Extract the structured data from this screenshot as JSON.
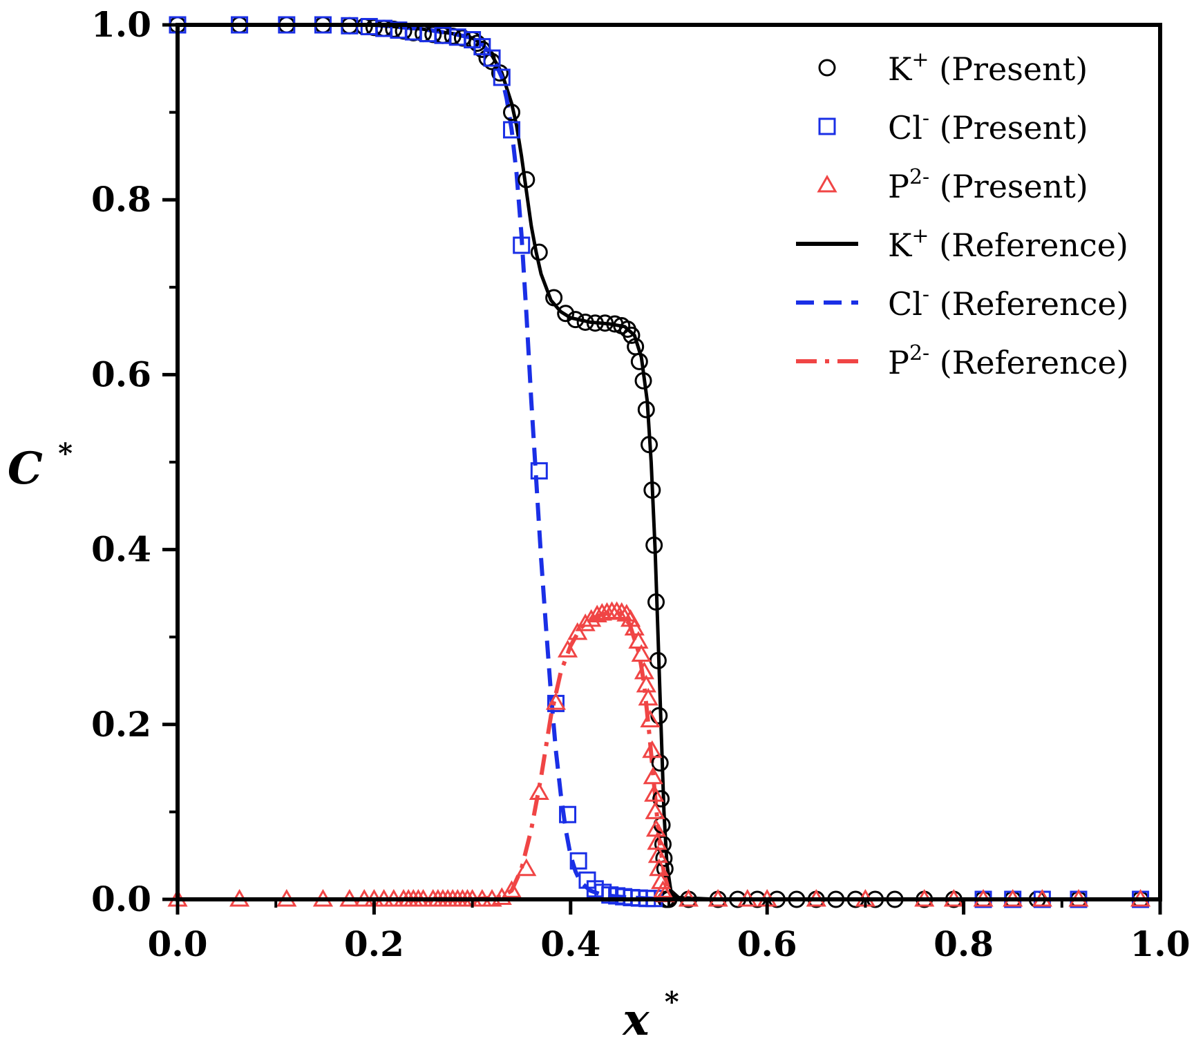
{
  "chart_data": {
    "type": "line",
    "title": "",
    "xlabel": "x",
    "xlabel_superscript": "*",
    "ylabel": "C",
    "ylabel_superscript": "*",
    "xlim": [
      0.0,
      1.0
    ],
    "ylim": [
      0.0,
      1.0
    ],
    "xticks": [
      "0.0",
      "0.2",
      "0.4",
      "0.6",
      "0.8",
      "1.0"
    ],
    "yticks": [
      "0.0",
      "0.2",
      "0.4",
      "0.6",
      "0.8",
      "1.0"
    ],
    "grid": false,
    "legend_position": "top-right",
    "colors": {
      "black": "#000000",
      "blue": "#1a2fe6",
      "red": "#f04545"
    },
    "legend": [
      {
        "base": "K",
        "sup": "+",
        "suffix": " (Present)",
        "style": "circle",
        "color": "#000000"
      },
      {
        "base": "Cl",
        "sup": "-",
        "suffix": " (Present)",
        "style": "square",
        "color": "#1a2fe6"
      },
      {
        "base": "P",
        "sup": "2-",
        "suffix": " (Present)",
        "style": "triangle",
        "color": "#f04545"
      },
      {
        "base": "K",
        "sup": "+",
        "suffix": " (Reference)",
        "style": "solid",
        "color": "#000000"
      },
      {
        "base": "Cl",
        "sup": "-",
        "suffix": " (Reference)",
        "style": "dashed",
        "color": "#1a2fe6"
      },
      {
        "base": "P",
        "sup": "2-",
        "suffix": " (Reference)",
        "style": "dashdot",
        "color": "#f04545"
      }
    ],
    "series": [
      {
        "name": "K+ (Reference)",
        "style": "solid",
        "color": "#000000",
        "x": [
          0.0,
          0.2,
          0.25,
          0.28,
          0.3,
          0.31,
          0.32,
          0.33,
          0.34,
          0.345,
          0.35,
          0.355,
          0.36,
          0.365,
          0.37,
          0.38,
          0.39,
          0.4,
          0.42,
          0.44,
          0.455,
          0.465,
          0.472,
          0.478,
          0.482,
          0.486,
          0.489,
          0.492,
          0.495,
          0.498,
          0.502,
          0.51,
          0.55,
          0.7,
          1.0
        ],
        "y": [
          1.0,
          1.0,
          0.995,
          0.99,
          0.985,
          0.978,
          0.965,
          0.945,
          0.91,
          0.885,
          0.85,
          0.81,
          0.77,
          0.74,
          0.715,
          0.685,
          0.672,
          0.665,
          0.66,
          0.658,
          0.655,
          0.645,
          0.62,
          0.57,
          0.5,
          0.4,
          0.3,
          0.2,
          0.1,
          0.04,
          0.01,
          0.002,
          0.0,
          0.0,
          0.0
        ]
      },
      {
        "name": "Cl- (Reference)",
        "style": "dashed",
        "color": "#1a2fe6",
        "x": [
          0.0,
          0.2,
          0.25,
          0.28,
          0.3,
          0.31,
          0.32,
          0.33,
          0.335,
          0.34,
          0.345,
          0.35,
          0.355,
          0.36,
          0.365,
          0.37,
          0.375,
          0.38,
          0.385,
          0.39,
          0.395,
          0.4,
          0.405,
          0.41,
          0.42,
          0.43,
          0.44,
          0.45,
          0.47,
          0.5,
          1.0
        ],
        "y": [
          1.0,
          1.0,
          0.995,
          0.99,
          0.985,
          0.978,
          0.965,
          0.94,
          0.915,
          0.88,
          0.83,
          0.76,
          0.67,
          0.57,
          0.48,
          0.39,
          0.31,
          0.235,
          0.17,
          0.12,
          0.08,
          0.05,
          0.032,
          0.02,
          0.01,
          0.006,
          0.004,
          0.003,
          0.0015,
          0.0,
          0.0
        ]
      },
      {
        "name": "P2- (Reference)",
        "style": "dashdot",
        "color": "#f04545",
        "x": [
          0.0,
          0.3,
          0.33,
          0.34,
          0.35,
          0.36,
          0.37,
          0.38,
          0.39,
          0.4,
          0.41,
          0.42,
          0.43,
          0.44,
          0.45,
          0.46,
          0.47,
          0.475,
          0.48,
          0.485,
          0.49,
          0.495,
          0.5,
          0.51,
          1.0
        ],
        "y": [
          0.0,
          0.0,
          0.003,
          0.01,
          0.035,
          0.08,
          0.14,
          0.21,
          0.26,
          0.29,
          0.31,
          0.32,
          0.325,
          0.328,
          0.327,
          0.315,
          0.28,
          0.245,
          0.19,
          0.13,
          0.07,
          0.03,
          0.01,
          0.0,
          0.0
        ]
      }
    ],
    "markers": [
      {
        "name": "K+ (Present)",
        "marker": "circle",
        "color": "#000000",
        "x": [
          0.0,
          0.063,
          0.111,
          0.148,
          0.175,
          0.19,
          0.2,
          0.21,
          0.22,
          0.23,
          0.24,
          0.25,
          0.26,
          0.27,
          0.28,
          0.29,
          0.3,
          0.305,
          0.31,
          0.315,
          0.32,
          0.328,
          0.34,
          0.355,
          0.368,
          0.383,
          0.395,
          0.405,
          0.415,
          0.425,
          0.435,
          0.445,
          0.452,
          0.458,
          0.462,
          0.466,
          0.47,
          0.474,
          0.477,
          0.48,
          0.483,
          0.485,
          0.487,
          0.489,
          0.49,
          0.491,
          0.492,
          0.493,
          0.494,
          0.495,
          0.496,
          0.497,
          0.498,
          0.5,
          0.52,
          0.55,
          0.57,
          0.59,
          0.61,
          0.63,
          0.65,
          0.67,
          0.69,
          0.71,
          0.73,
          0.76,
          0.79,
          0.82,
          0.85,
          0.875,
          0.917,
          0.98
        ],
        "y": [
          1.0,
          1.0,
          1.0,
          1.0,
          0.999,
          0.998,
          0.997,
          0.996,
          0.995,
          0.993,
          0.991,
          0.99,
          0.989,
          0.988,
          0.987,
          0.985,
          0.983,
          0.979,
          0.972,
          0.962,
          0.958,
          0.945,
          0.9,
          0.823,
          0.74,
          0.688,
          0.67,
          0.663,
          0.66,
          0.659,
          0.659,
          0.658,
          0.656,
          0.652,
          0.645,
          0.632,
          0.615,
          0.593,
          0.56,
          0.52,
          0.468,
          0.405,
          0.34,
          0.273,
          0.21,
          0.156,
          0.115,
          0.085,
          0.063,
          0.047,
          0.035,
          0.0,
          0.0,
          0.0,
          0.0,
          0.0,
          0.0,
          0.0,
          0.0,
          0.0,
          0.0,
          0.0,
          0.0,
          0.0,
          0.0,
          0.0,
          0.0,
          0.0,
          0.0,
          0.0,
          0.0,
          0.0
        ]
      },
      {
        "name": "Cl- (Present)",
        "marker": "square",
        "color": "#1a2fe6",
        "x": [
          0.0,
          0.063,
          0.111,
          0.148,
          0.175,
          0.195,
          0.21,
          0.225,
          0.24,
          0.255,
          0.27,
          0.285,
          0.3,
          0.31,
          0.32,
          0.33,
          0.34,
          0.35,
          0.368,
          0.385,
          0.397,
          0.408,
          0.417,
          0.425,
          0.433,
          0.44,
          0.447,
          0.454,
          0.462,
          0.47,
          0.478,
          0.485,
          0.82,
          0.85,
          0.88,
          0.917,
          0.98
        ],
        "y": [
          1.0,
          1.0,
          1.0,
          1.0,
          0.999,
          0.998,
          0.996,
          0.994,
          0.992,
          0.99,
          0.988,
          0.986,
          0.983,
          0.975,
          0.962,
          0.94,
          0.88,
          0.748,
          0.49,
          0.224,
          0.097,
          0.044,
          0.022,
          0.012,
          0.008,
          0.005,
          0.004,
          0.003,
          0.002,
          0.0015,
          0.001,
          0.001,
          0.0,
          0.0,
          0.0,
          0.0,
          0.0
        ]
      },
      {
        "name": "P2- (Present)",
        "marker": "triangle",
        "color": "#f04545",
        "x": [
          0.0,
          0.063,
          0.111,
          0.148,
          0.175,
          0.19,
          0.2,
          0.21,
          0.22,
          0.23,
          0.235,
          0.24,
          0.245,
          0.25,
          0.26,
          0.265,
          0.27,
          0.275,
          0.28,
          0.285,
          0.29,
          0.295,
          0.3,
          0.31,
          0.32,
          0.33,
          0.34,
          0.355,
          0.368,
          0.385,
          0.397,
          0.407,
          0.415,
          0.421,
          0.427,
          0.432,
          0.437,
          0.442,
          0.447,
          0.452,
          0.457,
          0.461,
          0.465,
          0.469,
          0.472,
          0.475,
          0.477,
          0.479,
          0.481,
          0.483,
          0.484,
          0.485,
          0.486,
          0.487,
          0.488,
          0.489,
          0.49,
          0.492,
          0.494,
          0.496,
          0.52,
          0.55,
          0.58,
          0.6,
          0.65,
          0.7,
          0.76,
          0.79,
          0.82,
          0.85,
          0.88,
          0.917,
          0.98
        ],
        "y": [
          0.0,
          0.0,
          0.0,
          0.0,
          0.0,
          0.0,
          0.0,
          0.0,
          0.0,
          0.0,
          0.0,
          0.0,
          0.0,
          0.0,
          0.0,
          0.0,
          0.0,
          0.0,
          0.0,
          0.0,
          0.0,
          0.0,
          0.0,
          0.0,
          0.0,
          0.002,
          0.01,
          0.035,
          0.122,
          0.225,
          0.285,
          0.305,
          0.315,
          0.32,
          0.325,
          0.327,
          0.328,
          0.329,
          0.329,
          0.328,
          0.326,
          0.32,
          0.31,
          0.295,
          0.28,
          0.26,
          0.245,
          0.23,
          0.205,
          0.17,
          0.14,
          0.12,
          0.1,
          0.08,
          0.065,
          0.05,
          0.035,
          0.02,
          0.01,
          0.005,
          0.0,
          0.0,
          0.0,
          0.0,
          0.0,
          0.0,
          0.0,
          0.0,
          0.0,
          0.0,
          0.0,
          0.0,
          0.0
        ]
      }
    ]
  }
}
